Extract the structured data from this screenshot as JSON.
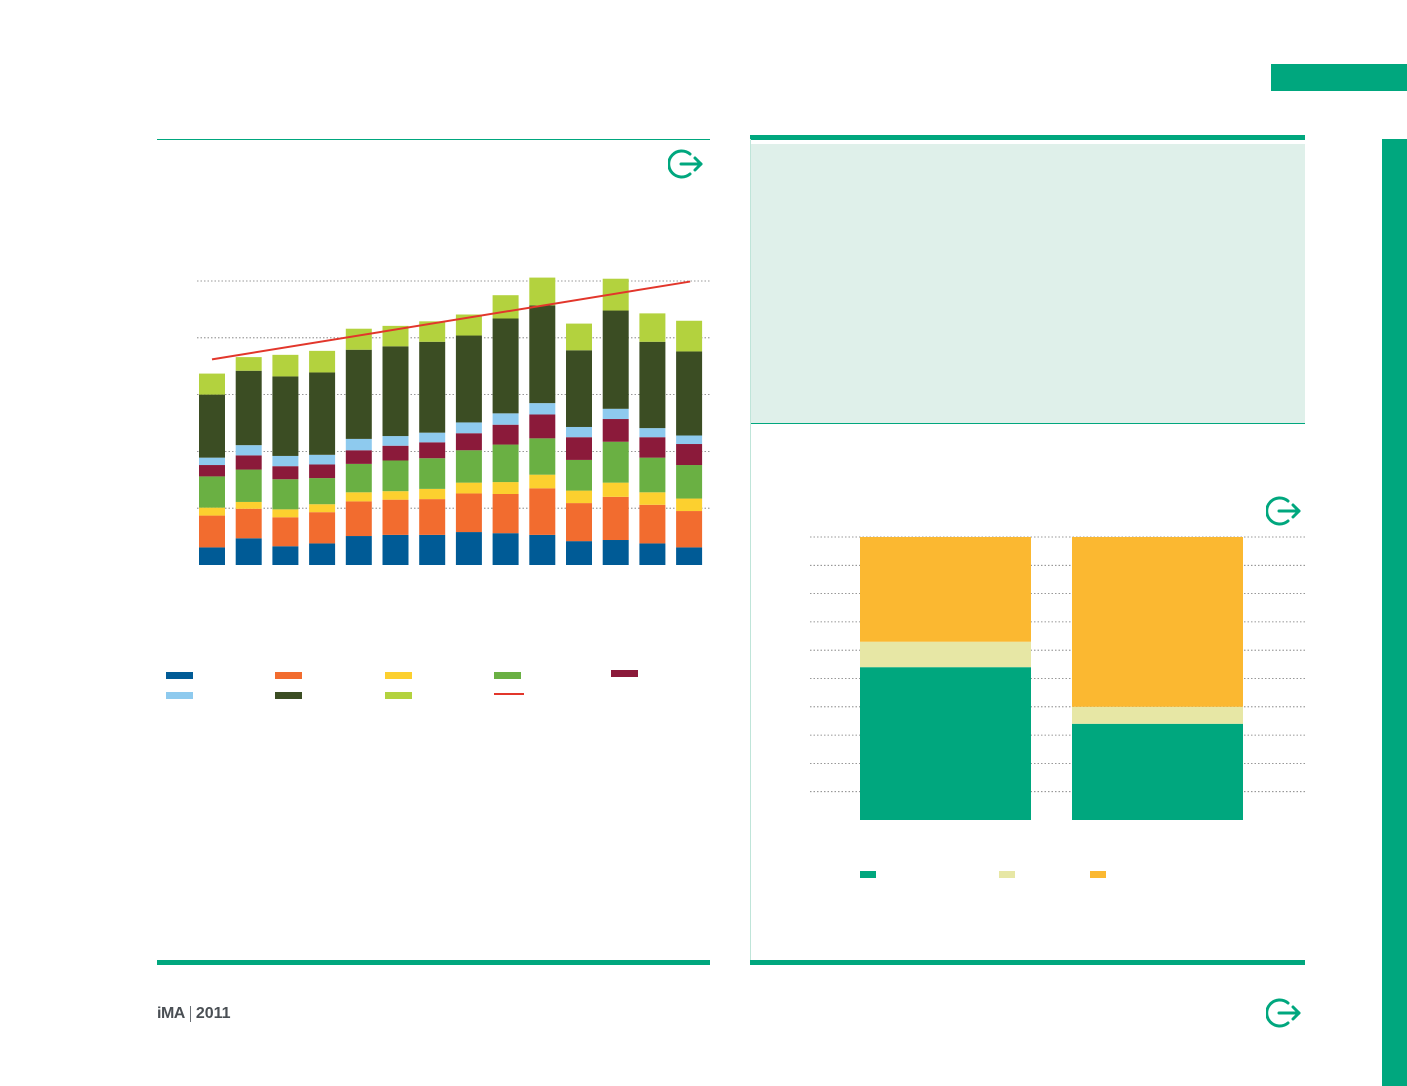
{
  "decor": {
    "brand_color": "#00a77e",
    "panel_color": "#dff0ea",
    "exit_icon": "exit-arrow-icon"
  },
  "logo": {
    "mark": "iMA",
    "year": "2011"
  },
  "chart_data": [
    {
      "type": "bar",
      "stacked": true,
      "grid": true,
      "ylim": [
        0,
        5
      ],
      "gridlines": [
        1,
        2,
        3,
        4,
        5
      ],
      "series": [
        {
          "color": "#005b96",
          "values": [
            0.31,
            0.47,
            0.33,
            0.38,
            0.51,
            0.53,
            0.53,
            0.58,
            0.56,
            0.53,
            0.42,
            0.44,
            0.38,
            0.31
          ]
        },
        {
          "color": "#f26c2f",
          "values": [
            0.56,
            0.52,
            0.51,
            0.55,
            0.61,
            0.62,
            0.63,
            0.68,
            0.69,
            0.82,
            0.67,
            0.76,
            0.68,
            0.64
          ]
        },
        {
          "color": "#fcd02f",
          "values": [
            0.14,
            0.12,
            0.14,
            0.14,
            0.16,
            0.15,
            0.18,
            0.19,
            0.21,
            0.24,
            0.22,
            0.25,
            0.22,
            0.22
          ]
        },
        {
          "color": "#6ab043",
          "values": [
            0.55,
            0.57,
            0.53,
            0.46,
            0.5,
            0.54,
            0.54,
            0.57,
            0.66,
            0.64,
            0.54,
            0.72,
            0.61,
            0.59
          ]
        },
        {
          "color": "#8b1a3a",
          "values": [
            0.2,
            0.25,
            0.23,
            0.24,
            0.24,
            0.26,
            0.28,
            0.3,
            0.35,
            0.42,
            0.4,
            0.4,
            0.36,
            0.37
          ]
        },
        {
          "color": "#8ecaee",
          "values": [
            0.13,
            0.18,
            0.18,
            0.17,
            0.2,
            0.17,
            0.17,
            0.19,
            0.2,
            0.2,
            0.18,
            0.18,
            0.16,
            0.15
          ]
        },
        {
          "color": "#3b4d23",
          "values": [
            1.11,
            1.31,
            1.4,
            1.45,
            1.57,
            1.58,
            1.6,
            1.53,
            1.67,
            1.72,
            1.35,
            1.73,
            1.52,
            1.48
          ]
        },
        {
          "color": "#b3d23e",
          "values": [
            0.37,
            0.24,
            0.38,
            0.38,
            0.37,
            0.36,
            0.36,
            0.37,
            0.41,
            0.49,
            0.47,
            0.56,
            0.5,
            0.54
          ]
        }
      ],
      "trend": {
        "color": "#e2362b",
        "values": [
          3.62,
          4.99
        ]
      }
    },
    {
      "type": "bar",
      "stacked": true,
      "grid": true,
      "ylim": [
        0,
        100
      ],
      "gridlines": [
        10,
        20,
        30,
        40,
        50,
        60,
        70,
        80,
        90,
        100
      ],
      "series": [
        {
          "color": "#00a77e",
          "values": [
            54,
            34
          ]
        },
        {
          "color": "#e7e7a5",
          "values": [
            9,
            6
          ]
        },
        {
          "color": "#fbb831",
          "values": [
            37,
            60
          ]
        }
      ]
    }
  ]
}
